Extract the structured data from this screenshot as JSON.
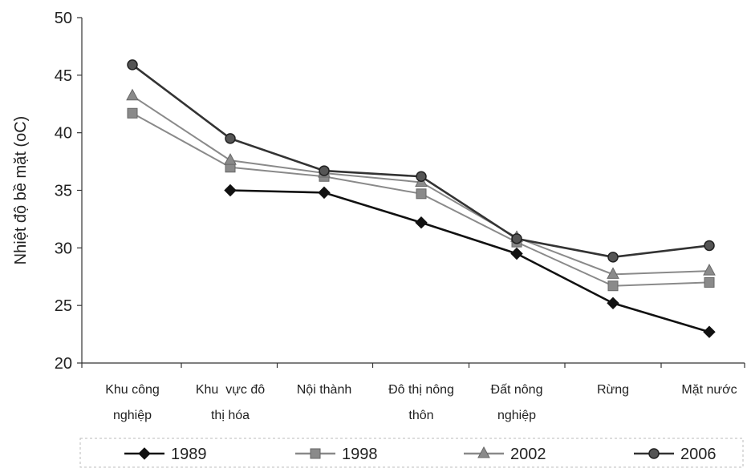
{
  "chart_data": {
    "type": "line",
    "ylabel": "Nhiệt độ bề mặt (oC)",
    "ylim": [
      20,
      50
    ],
    "yticks": [
      20,
      25,
      30,
      35,
      40,
      45,
      50
    ],
    "categories": [
      [
        "Khu công",
        "nghiệp"
      ],
      [
        "Khu  vực đô",
        "thị hóa"
      ],
      [
        "Nội thành"
      ],
      [
        "Đô thị nông",
        "thôn"
      ],
      [
        "Đất nông",
        "nghiệp"
      ],
      [
        "Rừng"
      ],
      [
        "Mặt nước"
      ]
    ],
    "grid": false,
    "legend_position": "bottom",
    "series": [
      {
        "name": "1989",
        "marker": "diamond",
        "color": "#111111",
        "values": [
          null,
          35.0,
          34.8,
          32.2,
          29.5,
          25.2,
          22.7
        ]
      },
      {
        "name": "1998",
        "marker": "square",
        "color": "#8a8a8a",
        "values": [
          41.7,
          37.0,
          36.2,
          34.7,
          30.5,
          26.7,
          27.0
        ]
      },
      {
        "name": "2002",
        "marker": "triangle",
        "color": "#8a8a8a",
        "values": [
          43.2,
          37.6,
          36.5,
          35.7,
          30.9,
          27.7,
          28.0
        ]
      },
      {
        "name": "2006",
        "marker": "circle",
        "color": "#333333",
        "values": [
          45.9,
          39.5,
          36.7,
          36.2,
          30.8,
          29.2,
          30.2
        ]
      }
    ]
  }
}
